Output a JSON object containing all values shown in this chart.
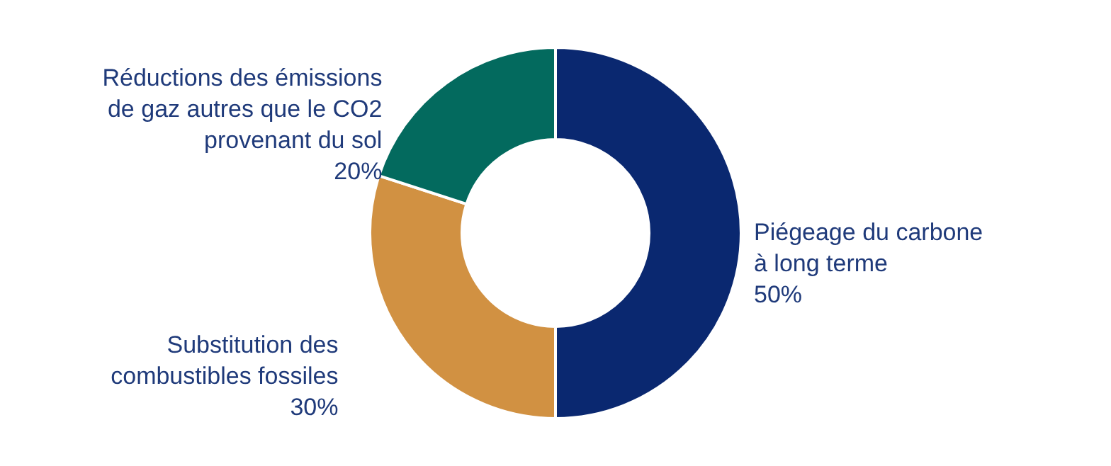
{
  "chart_data": {
    "type": "donut",
    "categories": [
      "Piégeage du carbone\nà long terme",
      "Substitution des\ncombustibles fossiles",
      "Réductions des émissions\nde gaz autres que le CO2\nprovenant du sol"
    ],
    "values": [
      50,
      30,
      20
    ],
    "value_labels": [
      "50%",
      "30%",
      "20%"
    ],
    "colors": [
      "#0a2870",
      "#d19142",
      "#036a5e"
    ]
  }
}
